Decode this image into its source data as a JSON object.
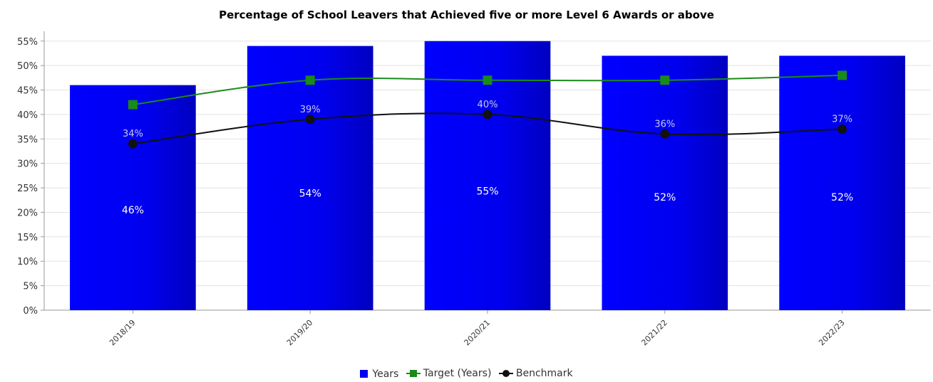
{
  "chart_data": {
    "type": "bar",
    "title": "Percentage of School Leavers that Achieved five or more Level 6 Awards or above",
    "categories": [
      "2018/19",
      "2019/20",
      "2020/21",
      "2021/22",
      "2022/23"
    ],
    "y_ticks": [
      "0%",
      "5%",
      "10%",
      "15%",
      "20%",
      "25%",
      "30%",
      "35%",
      "40%",
      "45%",
      "50%",
      "55%"
    ],
    "ylim": [
      0,
      57
    ],
    "grid": true,
    "legend_position": "bottom",
    "series": [
      {
        "name": "Years",
        "kind": "bar",
        "color": "#0000ee",
        "values": [
          46,
          54,
          55,
          52,
          52
        ],
        "value_labels": [
          "46%",
          "54%",
          "55%",
          "52%",
          "52%"
        ]
      },
      {
        "name": "Target (Years)",
        "kind": "line",
        "marker": "square",
        "color": "#1a8a1a",
        "values": [
          42,
          47,
          47,
          47,
          48
        ]
      },
      {
        "name": "Benchmark",
        "kind": "line",
        "marker": "circle",
        "color": "#111111",
        "values": [
          34,
          39,
          40,
          36,
          37
        ],
        "value_labels": [
          "34%",
          "39%",
          "40%",
          "36%",
          "37%"
        ]
      }
    ]
  }
}
